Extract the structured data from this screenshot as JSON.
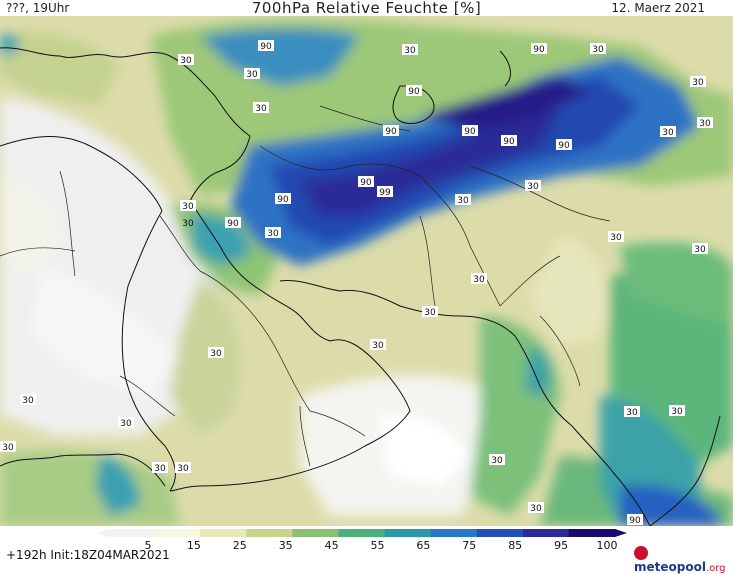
{
  "header": {
    "left": "???, 19Uhr",
    "title": "700hPa Relative Feuchte [%]",
    "date": "12. Maerz 2021"
  },
  "footer": {
    "run_info": "+192h  Init:18Z04MAR2021",
    "logo_name": "meteopool",
    "logo_tld": ".org"
  },
  "colorbar": {
    "ticks": [
      "5",
      "15",
      "25",
      "35",
      "45",
      "55",
      "65",
      "75",
      "85",
      "95",
      "100"
    ],
    "colors": [
      "#f2f2f2",
      "#f7f7e0",
      "#e8e8b8",
      "#c8d48a",
      "#8cc070",
      "#4cb07c",
      "#2a9aa8",
      "#2878c8",
      "#2050b8",
      "#2a2a98",
      "#1a0a70"
    ]
  },
  "contour_labels": {
    "c1": "90",
    "c2": "30",
    "c3": "30",
    "c4": "30",
    "c5": "90",
    "c6": "30",
    "c7": "90",
    "c8": "90",
    "c9": "90",
    "c10": "90",
    "c11": "30",
    "c12": "30",
    "c13": "90",
    "c14": "99",
    "c15": "90",
    "c16": "90",
    "c17": "30",
    "c18": "30",
    "c19": "30",
    "c20": "30",
    "c21": "30",
    "c22": "30",
    "c23": "30",
    "c24": "30",
    "c25": "30",
    "c26": "30",
    "c27": "30",
    "c28": "30",
    "c29": "30",
    "c30": "30",
    "c31": "30",
    "c32": "30",
    "c33": "30",
    "c34": "30",
    "c35": "90",
    "c36": "30",
    "c37": "30",
    "c38": "30",
    "c39": "90",
    "c40": "30"
  }
}
